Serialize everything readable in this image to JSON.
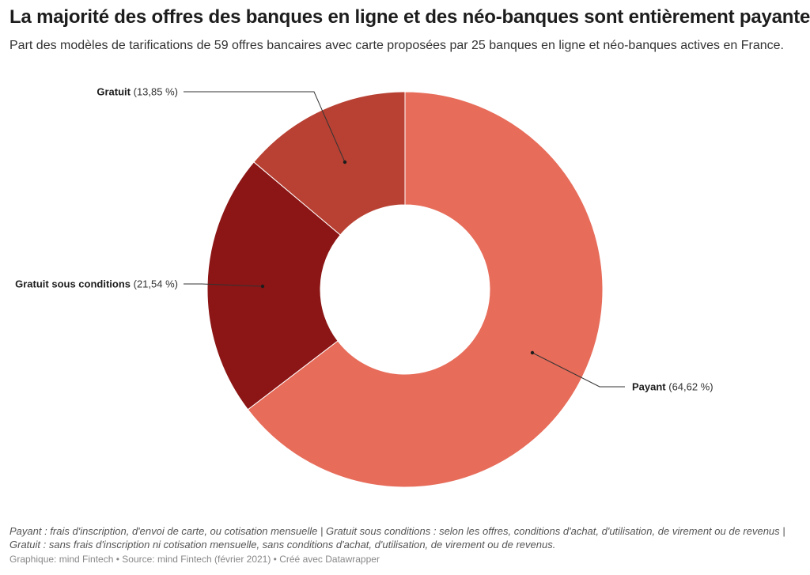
{
  "title": "La majorité des offres des banques en ligne et des néo-banques sont entièrement payantes",
  "subtitle": "Part des modèles de tarifications de 59 offres bancaires avec carte proposées par 25 banques en ligne et néo-banques actives en France.",
  "chart_data": {
    "type": "pie",
    "donut": true,
    "slices": [
      {
        "name": "Payant",
        "value": 64.62,
        "label": "(64,62 %)",
        "color": "#e76c5a"
      },
      {
        "name": "Gratuit sous conditions",
        "value": 21.54,
        "label": "(21,54 %)",
        "color": "#8c1515"
      },
      {
        "name": "Gratuit",
        "value": 13.85,
        "label": "(13,85 %)",
        "color": "#b84133"
      }
    ]
  },
  "notes": "Payant : frais d'inscription, d'envoi de carte, ou cotisation mensuelle | Gratuit sous conditions : selon les offres, conditions d'achat, d'utilisation, de virement ou de revenus | Gratuit : sans frais d'inscription ni cotisation mensuelle, sans conditions d'achat, d'utilisation, de virement ou de revenus.",
  "footer": "Graphique: mind Fintech • Source: mind Fintech (février 2021) • Créé avec Datawrapper"
}
